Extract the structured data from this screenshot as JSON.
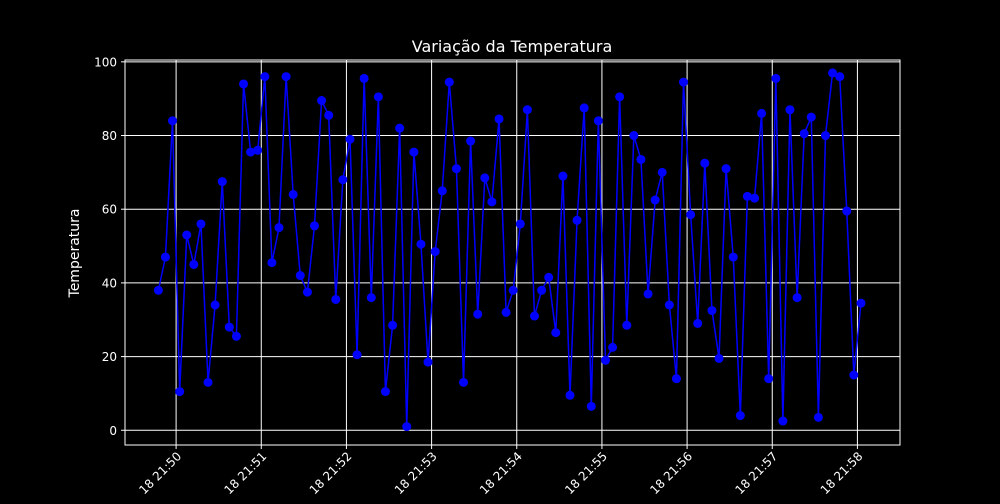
{
  "chart_data": {
    "type": "line",
    "title": "Variação da Temperatura",
    "xlabel": "",
    "ylabel": "Temperatura",
    "x_unit": "minute",
    "x_ticks": [
      {
        "minute": 0,
        "label": "18 21:50"
      },
      {
        "minute": 1,
        "label": "18 21:51"
      },
      {
        "minute": 2,
        "label": "18 21:52"
      },
      {
        "minute": 3,
        "label": "18 21:53"
      },
      {
        "minute": 4,
        "label": "18 21:54"
      },
      {
        "minute": 5,
        "label": "18 21:55"
      },
      {
        "minute": 6,
        "label": "18 21:56"
      },
      {
        "minute": 7,
        "label": "18 21:57"
      },
      {
        "minute": 8,
        "label": "18 21:58"
      }
    ],
    "xlim": [
      -0.6,
      8.5
    ],
    "ylim": [
      -4,
      100.5
    ],
    "y_ticks": [
      0,
      20,
      40,
      60,
      80,
      100
    ],
    "grid": true,
    "colors": {
      "background": "#000000",
      "line": "#0000ff",
      "marker": "#0000ff",
      "grid": "#ffffff",
      "text": "#ffffff"
    },
    "series": [
      {
        "x": [
          -0.208,
          -0.125,
          -0.042,
          0.042,
          0.125,
          0.208,
          0.292,
          0.375,
          0.458,
          0.542,
          0.625,
          0.708,
          0.792,
          0.875,
          0.958,
          1.042,
          1.125,
          1.208,
          1.292,
          1.375,
          1.458,
          1.542,
          1.625,
          1.708,
          1.792,
          1.875,
          1.958,
          2.042,
          2.125,
          2.208,
          2.292,
          2.375,
          2.458,
          2.542,
          2.625,
          2.708,
          2.792,
          2.875,
          2.958,
          3.042,
          3.125,
          3.208,
          3.292,
          3.375,
          3.458,
          3.542,
          3.625,
          3.708,
          3.792,
          3.875,
          3.958,
          4.042,
          4.125,
          4.208,
          4.292,
          4.375,
          4.458,
          4.542,
          4.625,
          4.708,
          4.792,
          4.875,
          4.958,
          5.042,
          5.125,
          5.208,
          5.292,
          5.375,
          5.458,
          5.542,
          5.625,
          5.708,
          5.792,
          5.875,
          5.958,
          6.042,
          6.125,
          6.208,
          6.292,
          6.375,
          6.458,
          6.542,
          6.625,
          6.708,
          6.792,
          6.875,
          6.958,
          7.042,
          7.125,
          7.208,
          7.292,
          7.375,
          7.458,
          7.542,
          7.625,
          7.708,
          7.792,
          7.875,
          7.958,
          8.042
        ],
        "values": [
          38,
          47,
          84,
          10.5,
          53,
          45,
          56,
          13,
          34,
          67.5,
          28,
          25.5,
          94,
          75.5,
          76,
          96,
          45.5,
          55,
          96,
          64,
          42,
          37.5,
          55.5,
          89.5,
          85.5,
          35.5,
          68,
          79,
          20.5,
          95.5,
          36,
          90.5,
          10.5,
          28.5,
          82,
          1,
          75.5,
          50.5,
          18.5,
          48.5,
          65,
          94.5,
          71,
          13,
          78.5,
          31.5,
          68.5,
          62,
          84.5,
          32,
          38,
          56,
          87,
          31,
          38,
          41.5,
          26.5,
          69,
          9.5,
          57,
          87.5,
          6.5,
          84,
          19,
          22.5,
          90.5,
          28.5,
          80,
          73.5,
          37,
          62.5,
          70,
          34,
          14,
          94.5,
          58.5,
          29,
          72.5,
          32.5,
          19.5,
          71,
          47,
          4,
          63.5,
          63,
          86,
          14,
          95.5,
          2.5,
          87,
          36,
          80.5,
          85,
          3.5,
          80,
          97,
          96,
          59.5,
          15,
          34.5
        ]
      }
    ]
  }
}
